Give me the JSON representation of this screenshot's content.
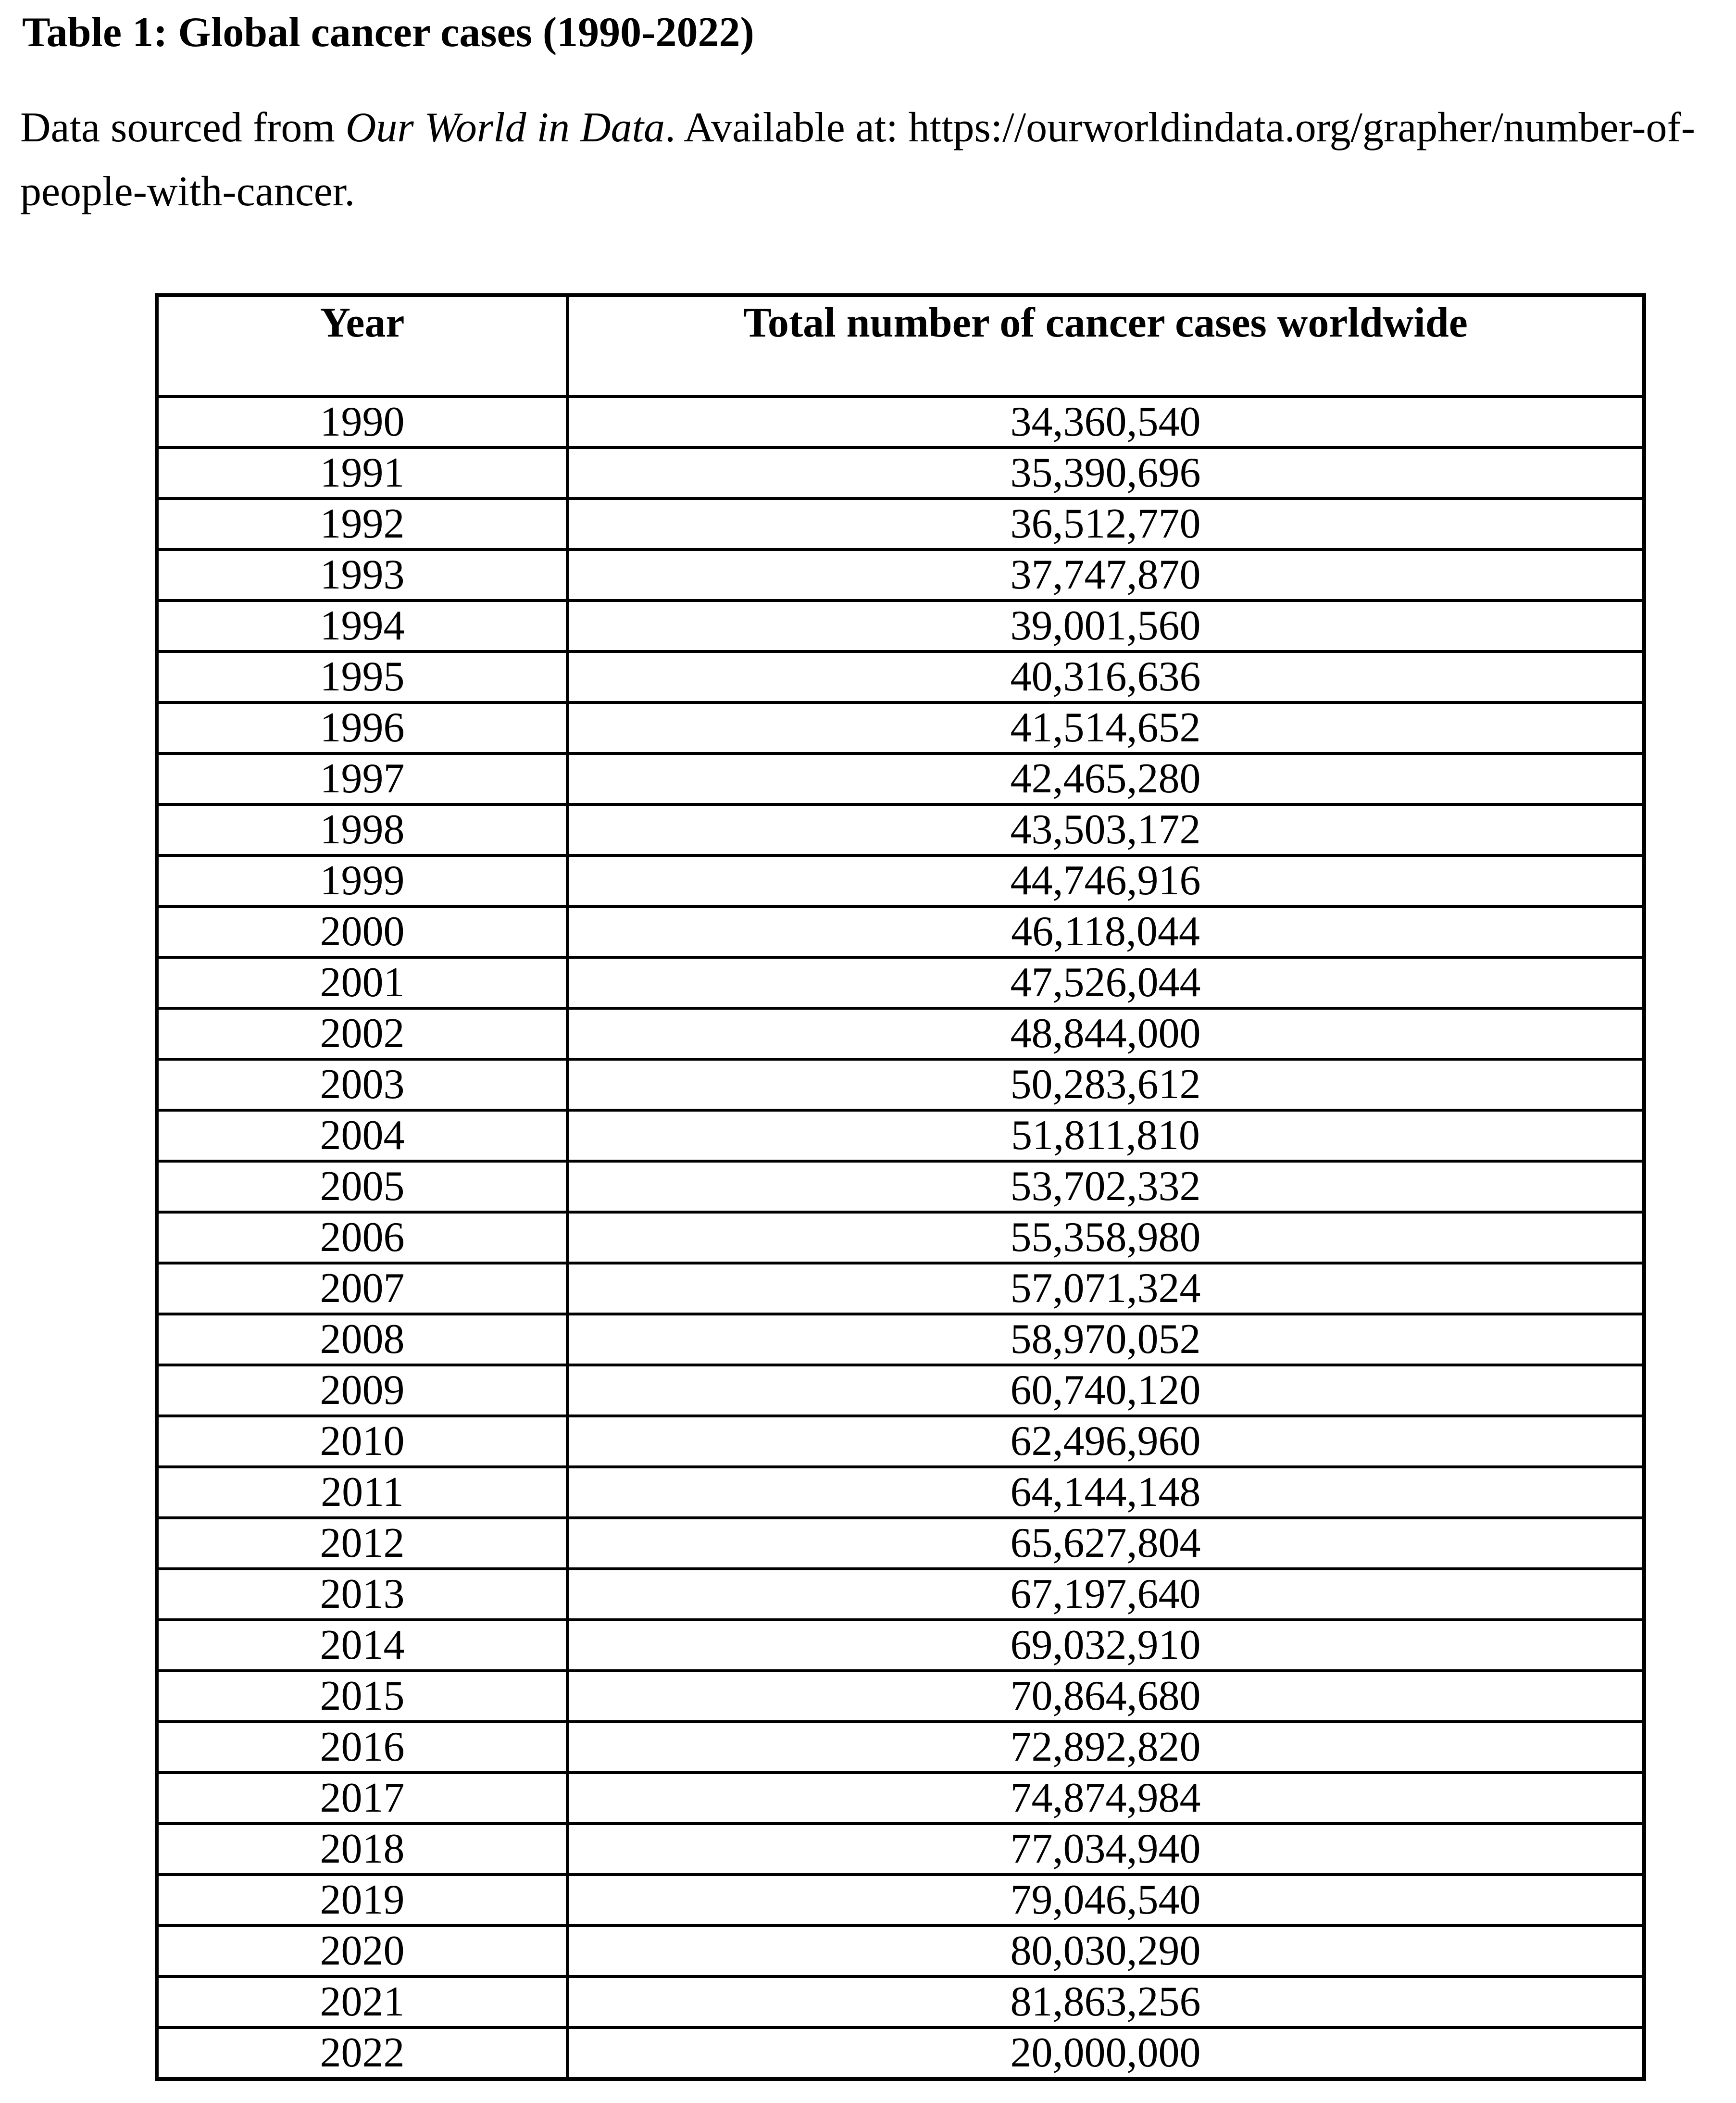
{
  "page": {
    "title": "Table 1: Global cancer cases (1990-2022)",
    "source": {
      "prefix": "Data sourced from ",
      "italic": "Our World in Data",
      "line1_rest": ". Available at: https://ourworldindata.org/grapher/number-of-",
      "line2": "people-with-cancer."
    }
  },
  "table": {
    "headers": [
      "Year",
      "Total number of cancer cases worldwide"
    ],
    "rows": [
      [
        "1990",
        "34,360,540"
      ],
      [
        "1991",
        "35,390,696"
      ],
      [
        "1992",
        "36,512,770"
      ],
      [
        "1993",
        "37,747,870"
      ],
      [
        "1994",
        "39,001,560"
      ],
      [
        "1995",
        "40,316,636"
      ],
      [
        "1996",
        "41,514,652"
      ],
      [
        "1997",
        "42,465,280"
      ],
      [
        "1998",
        "43,503,172"
      ],
      [
        "1999",
        "44,746,916"
      ],
      [
        "2000",
        "46,118,044"
      ],
      [
        "2001",
        "47,526,044"
      ],
      [
        "2002",
        "48,844,000"
      ],
      [
        "2003",
        "50,283,612"
      ],
      [
        "2004",
        "51,811,810"
      ],
      [
        "2005",
        "53,702,332"
      ],
      [
        "2006",
        "55,358,980"
      ],
      [
        "2007",
        "57,071,324"
      ],
      [
        "2008",
        "58,970,052"
      ],
      [
        "2009",
        "60,740,120"
      ],
      [
        "2010",
        "62,496,960"
      ],
      [
        "2011",
        "64,144,148"
      ],
      [
        "2012",
        "65,627,804"
      ],
      [
        "2013",
        "67,197,640"
      ],
      [
        "2014",
        "69,032,910"
      ],
      [
        "2015",
        "70,864,680"
      ],
      [
        "2016",
        "72,892,820"
      ],
      [
        "2017",
        "74,874,984"
      ],
      [
        "2018",
        "77,034,940"
      ],
      [
        "2019",
        "79,046,540"
      ],
      [
        "2020",
        "80,030,290"
      ],
      [
        "2021",
        "81,863,256"
      ],
      [
        "2022",
        "20,000,000"
      ]
    ]
  },
  "chart_data": {
    "type": "table",
    "title": "Table 1: Global cancer cases (1990-2022)",
    "columns": [
      "Year",
      "Total number of cancer cases worldwide"
    ],
    "years": [
      1990,
      1991,
      1992,
      1993,
      1994,
      1995,
      1996,
      1997,
      1998,
      1999,
      2000,
      2001,
      2002,
      2003,
      2004,
      2005,
      2006,
      2007,
      2008,
      2009,
      2010,
      2011,
      2012,
      2013,
      2014,
      2015,
      2016,
      2017,
      2018,
      2019,
      2020,
      2021,
      2022
    ],
    "values": [
      34360540,
      35390696,
      36512770,
      37747870,
      39001560,
      40316636,
      41514652,
      42465280,
      43503172,
      44746916,
      46118044,
      47526044,
      48844000,
      50283612,
      51811810,
      53702332,
      55358980,
      57071324,
      58970052,
      60740120,
      62496960,
      64144148,
      65627804,
      67197640,
      69032910,
      70864680,
      72892820,
      74874984,
      77034940,
      79046540,
      80030290,
      81863256,
      20000000
    ]
  }
}
